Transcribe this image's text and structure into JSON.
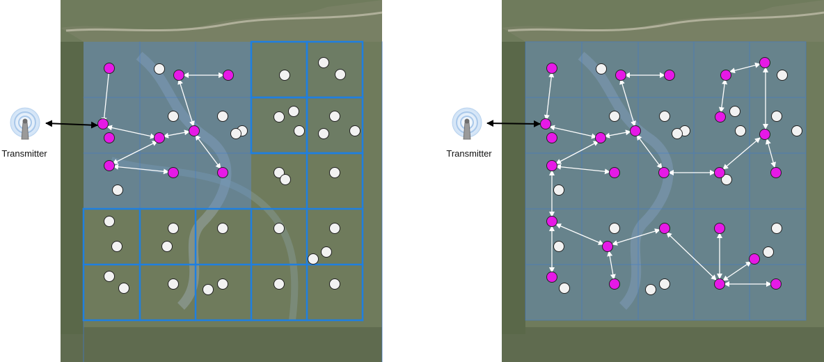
{
  "panels": [
    {
      "id": "left",
      "transmitter_label": "Transmitter",
      "node_colors": {
        "active": "#e619e6",
        "inactive": "#f2f2f2"
      }
    },
    {
      "id": "right",
      "transmitter_label": "Transmitter",
      "node_colors": {
        "active": "#e619e6",
        "inactive": "#f2f2f2"
      }
    }
  ],
  "colors": {
    "grid_line": "#1f7fe0",
    "grid_fill": "#5d8fd0",
    "terrain": "#6d7a5a",
    "link_arrow": "#ffffff",
    "uplink_arrow": "#000000",
    "transmitter_icon": "#8cb8e6"
  },
  "icons": {
    "transmitter": "antenna-icon"
  }
}
